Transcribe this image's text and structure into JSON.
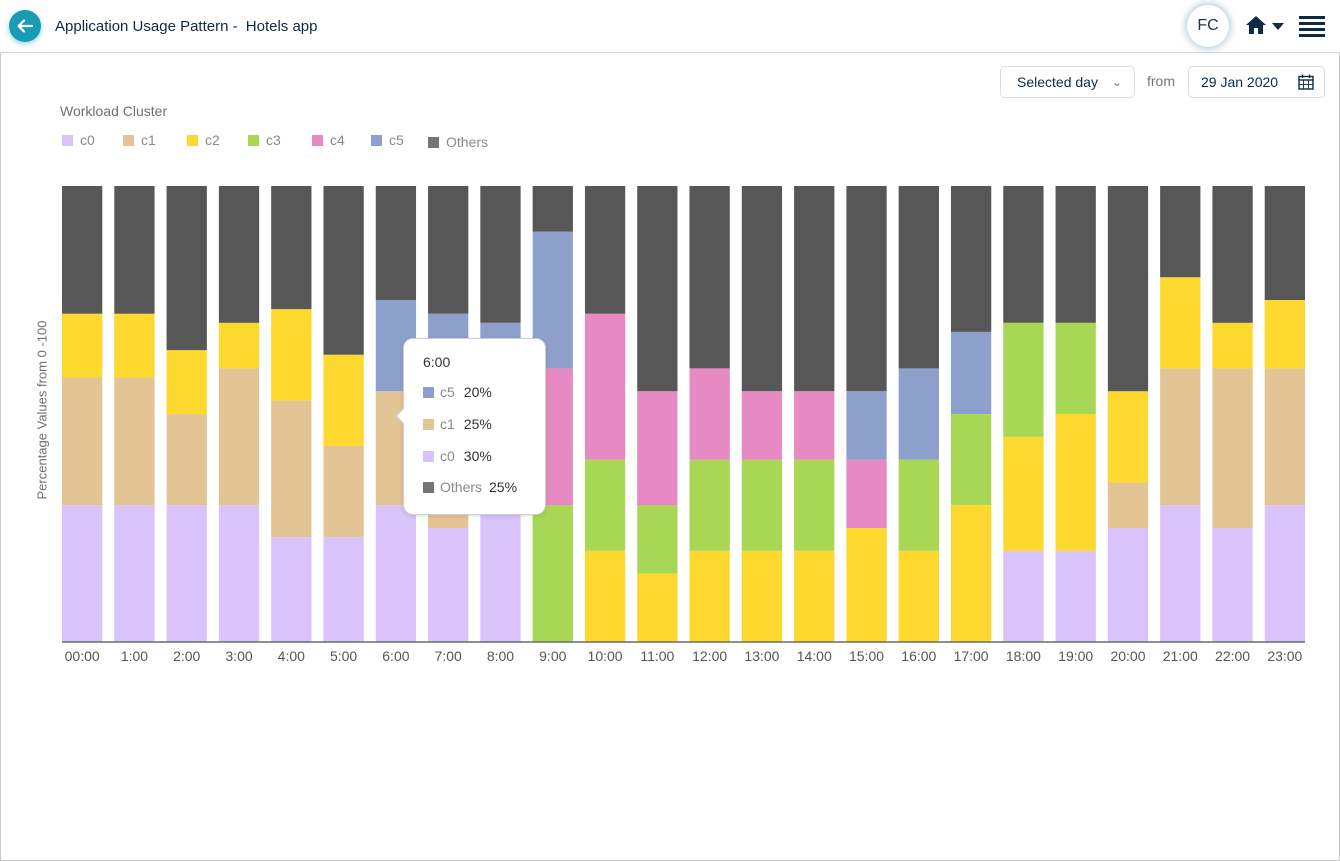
{
  "header": {
    "back_icon": "arrow-left-icon",
    "title": "Application Usage Pattern -",
    "app_name": "Hotels app",
    "avatar_initials": "FC",
    "home_icon": "home-icon",
    "home_dropdown_icon": "caret-down-icon",
    "menu_icon": "hamburger-menu-icon"
  },
  "filters": {
    "period_select": {
      "value": "Selected day",
      "icon": "chevron-down-icon"
    },
    "from_label": "from",
    "date_field": {
      "value": "29 Jan 2020",
      "icon": "calendar-icon"
    }
  },
  "legend": {
    "title": "Workload Cluster",
    "items": [
      {
        "key": "c0",
        "label": "c0",
        "color": "#d9c3fb"
      },
      {
        "key": "c1",
        "label": "c1",
        "color": "#e3c494"
      },
      {
        "key": "c2",
        "label": "c2",
        "color": "#fdd82e"
      },
      {
        "key": "c3",
        "label": "c3",
        "color": "#a7d755"
      },
      {
        "key": "c4",
        "label": "c4",
        "color": "#e78ac3"
      },
      {
        "key": "c5",
        "label": "c5",
        "color": "#8da0cb"
      },
      {
        "key": "others",
        "label": "Others",
        "color": "#575757"
      }
    ]
  },
  "tooltip": {
    "title": "6:00",
    "rows": [
      {
        "key": "c5",
        "label": "c5",
        "value": "20%",
        "color": "#8da0cb"
      },
      {
        "key": "c1",
        "label": "c1",
        "value": "25%",
        "color": "#e3c494"
      },
      {
        "key": "c0",
        "label": "c0",
        "value": "30%",
        "color": "#d9c3fb"
      },
      {
        "key": "others",
        "label": "Others",
        "value": "25%",
        "color": "#757575"
      }
    ]
  },
  "chart_data": {
    "type": "bar",
    "stacked": true,
    "title": "",
    "xlabel": "",
    "ylabel": "Percentage Values from 0 -100",
    "ylim": [
      0,
      100
    ],
    "grid": false,
    "legend_title": "Workload Cluster",
    "legend_position": "top-left",
    "categories": [
      "00:00",
      "1:00",
      "2:00",
      "3:00",
      "4:00",
      "5:00",
      "6:00",
      "7:00",
      "8:00",
      "9:00",
      "10:00",
      "11:00",
      "12:00",
      "13:00",
      "14:00",
      "15:00",
      "16:00",
      "17:00",
      "18:00",
      "19:00",
      "20:00",
      "21:00",
      "22:00",
      "23:00"
    ],
    "series": [
      {
        "name": "c0",
        "color": "#d9c3fb",
        "values": [
          30,
          30,
          30,
          30,
          23,
          23,
          30,
          25,
          30,
          0,
          0,
          0,
          0,
          0,
          0,
          0,
          0,
          0,
          20,
          20,
          25,
          30,
          25,
          30
        ]
      },
      {
        "name": "c1",
        "color": "#e3c494",
        "values": [
          28,
          28,
          20,
          30,
          30,
          20,
          25,
          32,
          0,
          0,
          0,
          0,
          0,
          0,
          0,
          0,
          0,
          0,
          0,
          0,
          10,
          30,
          35,
          30
        ]
      },
      {
        "name": "c2",
        "color": "#fdd82e",
        "values": [
          14,
          14,
          14,
          10,
          20,
          20,
          0,
          0,
          0,
          0,
          20,
          15,
          20,
          20,
          20,
          25,
          20,
          30,
          25,
          30,
          20,
          20,
          10,
          15
        ]
      },
      {
        "name": "c3",
        "color": "#a7d755",
        "values": [
          0,
          0,
          0,
          0,
          0,
          0,
          0,
          0,
          0,
          30,
          20,
          15,
          20,
          20,
          20,
          0,
          20,
          20,
          25,
          20,
          0,
          0,
          0,
          0
        ]
      },
      {
        "name": "c4",
        "color": "#e78ac3",
        "values": [
          0,
          0,
          0,
          0,
          0,
          0,
          0,
          0,
          0,
          30,
          32,
          25,
          20,
          15,
          15,
          15,
          0,
          0,
          0,
          0,
          0,
          0,
          0,
          0
        ]
      },
      {
        "name": "c5",
        "color": "#8da0cb",
        "values": [
          0,
          0,
          0,
          0,
          0,
          0,
          20,
          15,
          40,
          30,
          0,
          0,
          0,
          0,
          0,
          15,
          20,
          18,
          0,
          0,
          0,
          0,
          0,
          0
        ]
      },
      {
        "name": "Others",
        "color": "#575757",
        "values": [
          28,
          28,
          36,
          30,
          27,
          37,
          25,
          28,
          30,
          10,
          28,
          45,
          40,
          45,
          45,
          45,
          40,
          32,
          30,
          30,
          45,
          20,
          30,
          25
        ]
      }
    ],
    "hovered_category": "6:00"
  }
}
